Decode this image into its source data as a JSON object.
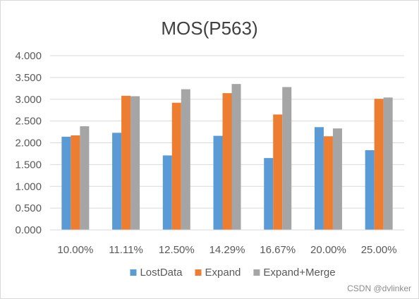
{
  "colors": {
    "LostData": "#5b9bd5",
    "Expand": "#ed7d31",
    "Expand+Merge": "#a5a5a5",
    "grid": "#d9d9d9",
    "text": "#595959"
  },
  "chart_data": {
    "type": "bar",
    "title": "MOS(P563)",
    "xlabel": "",
    "ylabel": "",
    "categories": [
      "10.00%",
      "11.11%",
      "12.50%",
      "14.29%",
      "16.67%",
      "20.00%",
      "25.00%"
    ],
    "series": [
      {
        "name": "LostData",
        "values": [
          2.14,
          2.23,
          1.71,
          2.16,
          1.65,
          2.36,
          1.83
        ]
      },
      {
        "name": "Expand",
        "values": [
          2.17,
          3.08,
          2.92,
          3.14,
          2.65,
          2.15,
          3.01
        ]
      },
      {
        "name": "Expand+Merge",
        "values": [
          2.38,
          3.07,
          3.23,
          3.35,
          3.28,
          2.33,
          3.04
        ]
      }
    ],
    "ylim": [
      0,
      4
    ],
    "yticks": [
      "0.000",
      "0.500",
      "1.000",
      "1.500",
      "2.000",
      "2.500",
      "3.000",
      "3.500",
      "4.000"
    ],
    "grid": true,
    "legend_position": "bottom"
  },
  "watermark": "CSDN @dvlinker"
}
